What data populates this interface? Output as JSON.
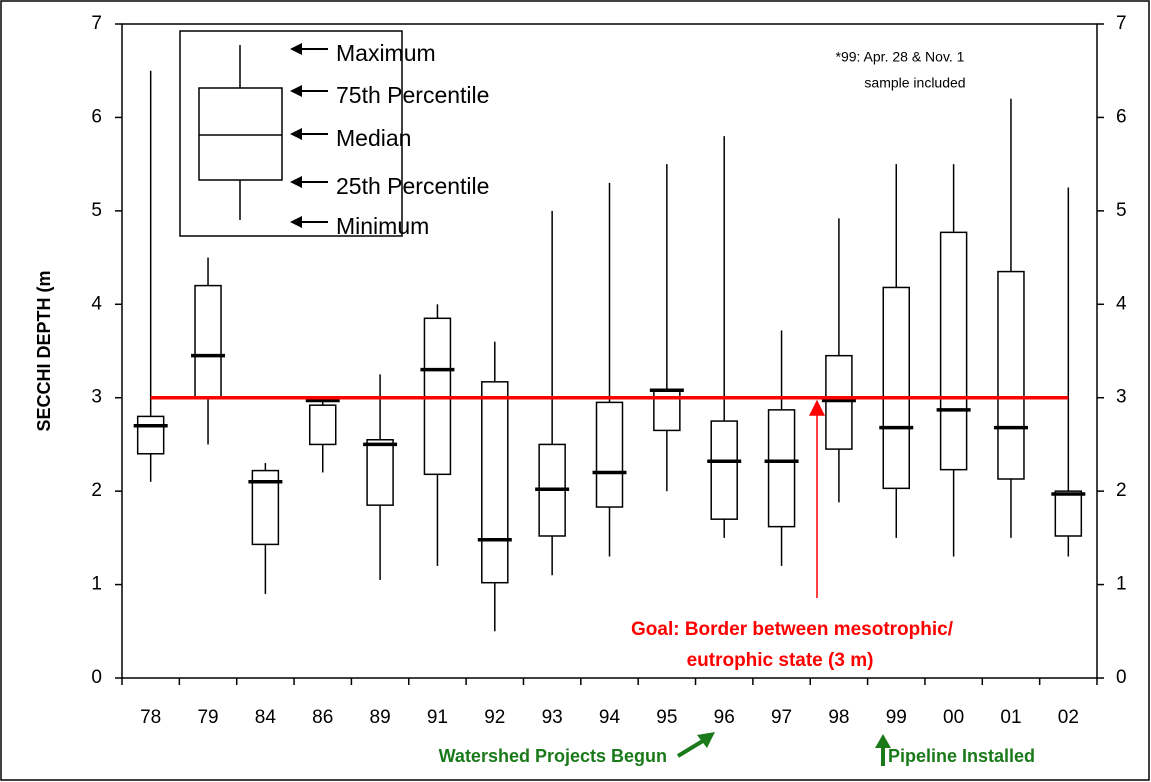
{
  "chart_data": {
    "type": "box",
    "ylabel": "SECCHI DEPTH (m",
    "categories": [
      "78",
      "79",
      "84",
      "86",
      "89",
      "91",
      "92",
      "93",
      "94",
      "95",
      "96",
      "97",
      "98",
      "99",
      "00",
      "01",
      "02"
    ],
    "min": [
      2.1,
      2.5,
      0.9,
      2.2,
      1.05,
      1.2,
      0.5,
      1.1,
      1.3,
      2.0,
      1.5,
      1.2,
      1.88,
      1.5,
      1.3,
      1.5,
      1.3
    ],
    "q1": [
      2.4,
      3.0,
      1.43,
      2.5,
      1.85,
      2.18,
      1.02,
      1.52,
      1.83,
      2.65,
      1.7,
      1.62,
      2.45,
      2.03,
      2.23,
      2.13,
      1.52
    ],
    "median": [
      2.7,
      3.45,
      2.1,
      2.97,
      2.5,
      3.3,
      1.48,
      2.02,
      2.2,
      3.08,
      2.32,
      2.32,
      2.97,
      2.68,
      2.87,
      2.68,
      1.97
    ],
    "q3": [
      2.8,
      4.2,
      2.22,
      2.92,
      2.55,
      3.85,
      3.17,
      2.5,
      2.95,
      3.08,
      2.75,
      2.87,
      3.45,
      4.18,
      4.77,
      4.35,
      2.0
    ],
    "max": [
      6.5,
      4.5,
      2.3,
      3.0,
      3.25,
      4.0,
      3.6,
      5.0,
      5.3,
      5.5,
      5.8,
      3.72,
      4.92,
      5.5,
      5.5,
      6.2,
      5.25
    ],
    "color": "#000000",
    "ylim": [
      0,
      7
    ],
    "yticks": [
      0,
      1,
      2,
      3,
      4,
      5,
      6,
      7
    ],
    "y2lim": [
      0,
      7
    ],
    "y2ticks": [
      0,
      1,
      2,
      3,
      4,
      5,
      6,
      7
    ],
    "legend": {
      "items": [
        "Maximum",
        "75th Percentile",
        "Median",
        "25th Percentile",
        "Minimum"
      ]
    },
    "note": [
      "*99: Apr. 28 & Nov. 1",
      "sample included"
    ],
    "goal_line": {
      "value": 3,
      "color": "#ff0000",
      "label": [
        "Goal:  Border between mesotrophic/",
        "eutrophic state (3 m)"
      ]
    },
    "annotations": [
      "Watershed Projects Begun",
      "Pipeline Installed"
    ]
  }
}
